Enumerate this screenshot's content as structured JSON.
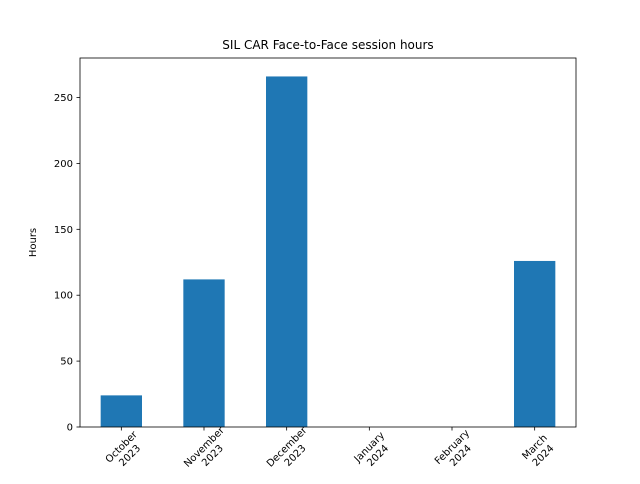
{
  "chart_data": {
    "type": "bar",
    "title": "SIL CAR Face-to-Face session hours",
    "xlabel": "",
    "ylabel": "Hours",
    "categories": [
      [
        "October",
        "2023"
      ],
      [
        "November",
        "2023"
      ],
      [
        "December",
        "2023"
      ],
      [
        "January",
        "2024"
      ],
      [
        "February",
        "2024"
      ],
      [
        "March",
        "2024"
      ]
    ],
    "values": [
      24,
      112,
      266,
      0,
      0,
      126
    ],
    "ylim": [
      0,
      280
    ],
    "yticks": [
      0,
      50,
      100,
      150,
      200,
      250
    ],
    "ytick_labels": [
      "0",
      "50",
      "100",
      "150",
      "200",
      "250"
    ],
    "x_tick_rotation_deg": 45,
    "bar_color": "#1f77b4",
    "grid": false,
    "legend": "none"
  }
}
